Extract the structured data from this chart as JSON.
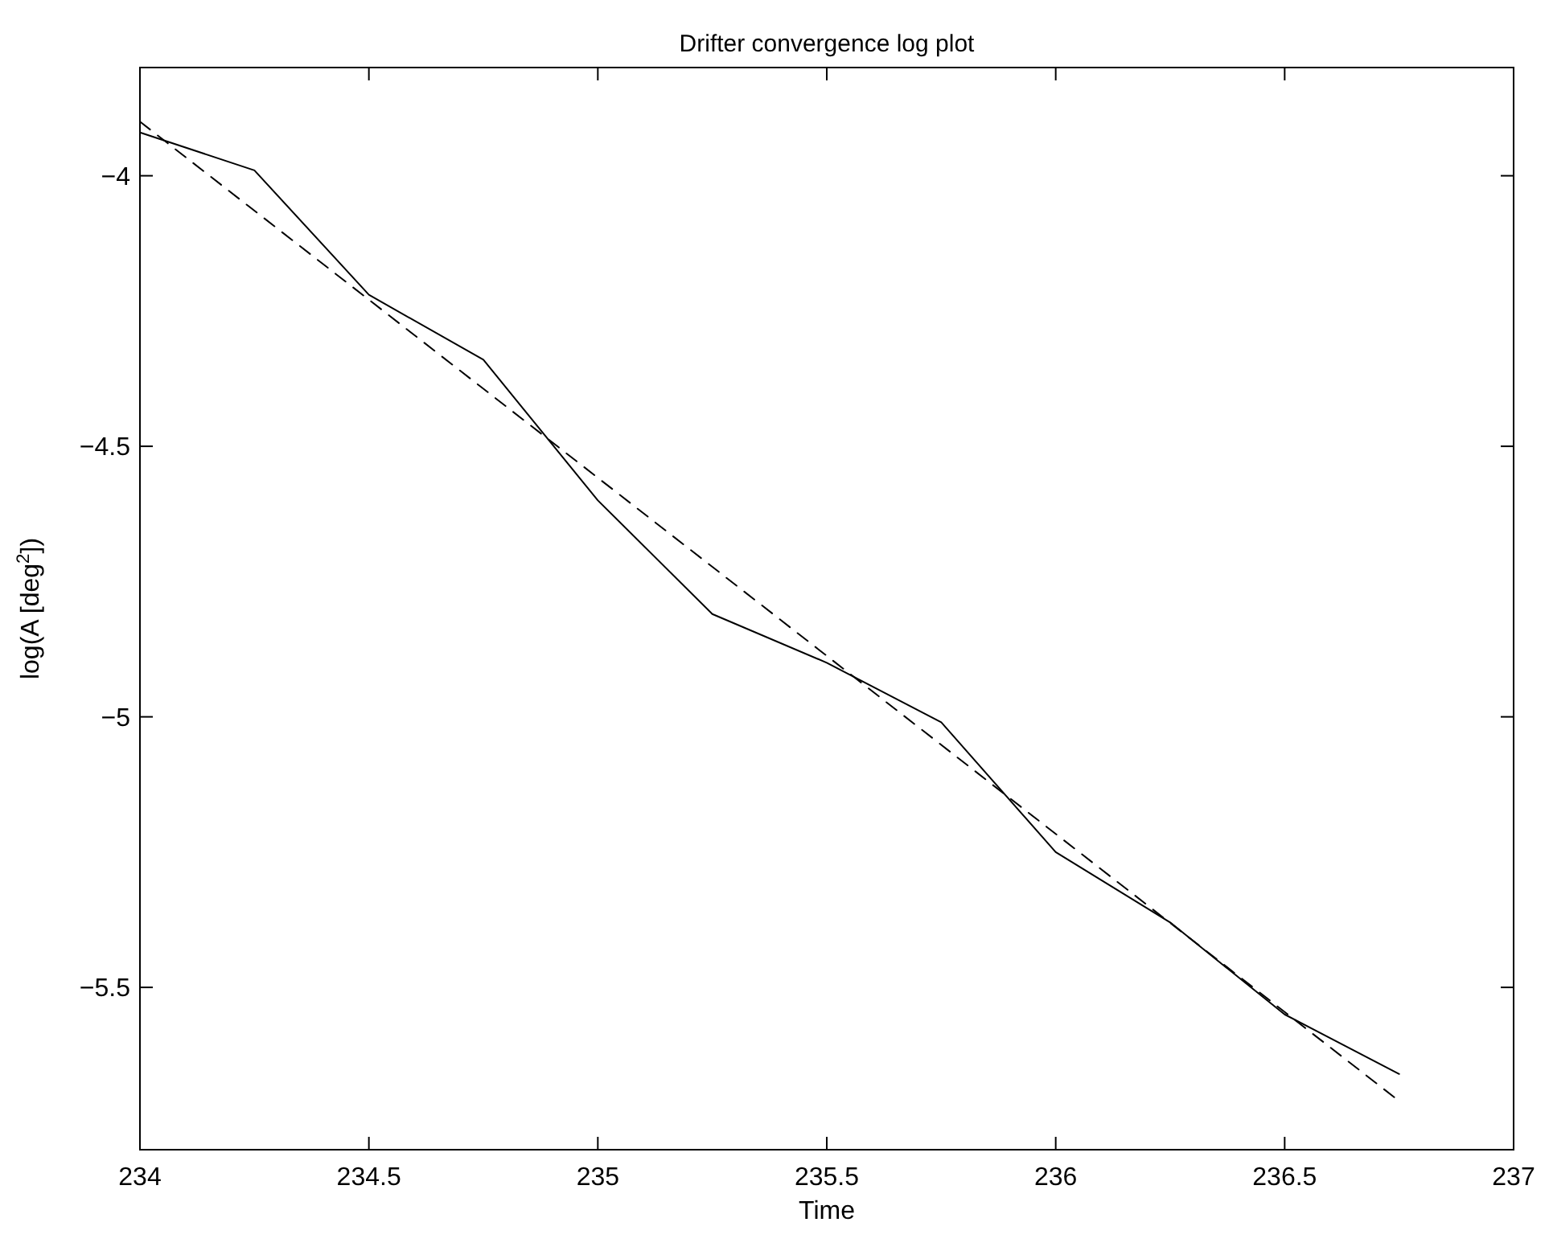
{
  "chart_data": {
    "type": "line",
    "title": "Drifter convergence log plot",
    "xlabel": "Time",
    "ylabel": "log(A [deg$^{2}$])",
    "x": [
      234,
      234.25,
      234.5,
      234.75,
      235,
      235.25,
      235.5,
      235.75,
      236,
      236.25,
      236.5,
      236.75
    ],
    "series": [
      {
        "color": "#000000",
        "line_style": "solid",
        "values": [
          -3.92,
          -3.99,
          -4.22,
          -4.34,
          -4.6,
          -4.81,
          -4.9,
          -5.01,
          -5.25,
          -5.38,
          -5.55,
          -5.66
        ]
      },
      {
        "color": "#000000",
        "line_style": "dashed",
        "x": [
          234,
          236.75
        ],
        "values": [
          -3.9,
          -5.71
        ]
      }
    ],
    "xlim": [
      234,
      237
    ],
    "xticks": [
      234,
      {
        "value": 234.5,
        "label": "234.5"
      },
      235,
      {
        "value": 235.5,
        "label": "235.5"
      },
      236,
      {
        "value": 236.5,
        "label": "236.5"
      },
      237
    ],
    "ylim": [
      -5.8,
      -3.8
    ],
    "yticks": [
      {
        "value": -5.5,
        "label": "−5.5"
      },
      {
        "value": -5,
        "label": "−5"
      },
      {
        "value": -4.5,
        "label": "−4.5"
      },
      {
        "value": -4,
        "label": "−4"
      }
    ],
    "grid": false
  }
}
